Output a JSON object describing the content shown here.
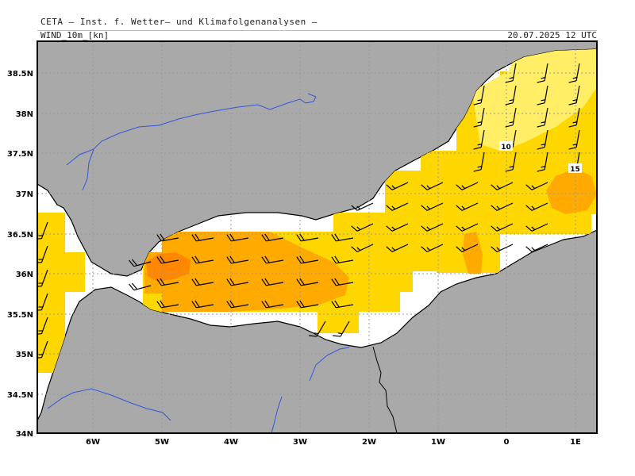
{
  "header": {
    "title": "CETA – Inst. f. Wetter– und Klimafolgenanalysen –",
    "parameter": "WIND_10m_[kn]",
    "datetime": "20.07.2025 12 UTC"
  },
  "axes": {
    "lat_labels": [
      "38.5N",
      "38N",
      "37.5N",
      "37N",
      "36.5N",
      "36N",
      "35.5N",
      "35N",
      "34.5N",
      "34N"
    ],
    "lon_labels": [
      "6W",
      "5W",
      "4W",
      "3W",
      "2W",
      "1W",
      "0",
      "1E"
    ]
  },
  "contours": {
    "label_10": "10",
    "label_15": "15"
  },
  "colors": {
    "land": "#a9a9a9",
    "sea": "#ffffff",
    "wind_5_10": "#ffee66",
    "wind_10_15": "#ffd700",
    "wind_15_20": "#ffaa00",
    "wind_20_25": "#ff8800",
    "coast": "#000000",
    "rivers": "#3355dd",
    "grid": "#999999"
  }
}
